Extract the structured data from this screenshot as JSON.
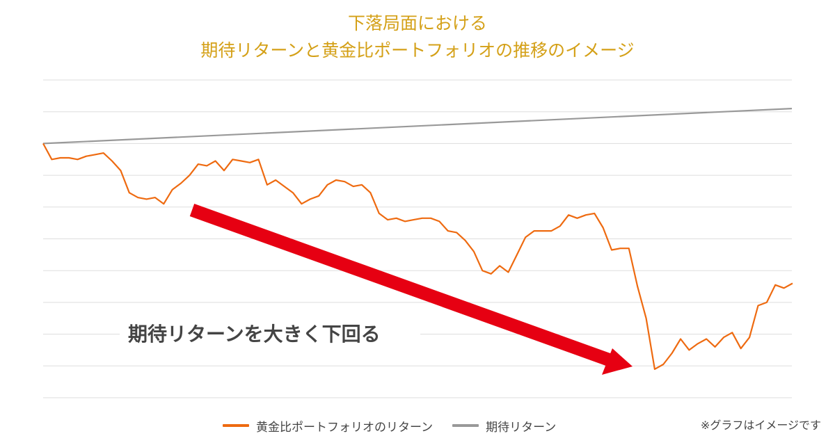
{
  "chart_data": {
    "type": "line",
    "title_lines": [
      "下落局面における",
      "期待リターンと黄金比ポートフォリオの推移のイメージ"
    ],
    "xlabel": "",
    "ylabel": "",
    "grid": true,
    "legend_position": "bottom",
    "annotation": "期待リターンを大きく下回る",
    "note": "※グラフはイメージです",
    "ylim": [
      -8,
      2
    ],
    "series": [
      {
        "name": "黄金比ポートフォリオのリターン",
        "color": "#ee6a10",
        "values": [
          0,
          -0.5,
          -0.45,
          -0.45,
          -0.5,
          -0.4,
          -0.35,
          -0.3,
          -0.55,
          -0.85,
          -1.55,
          -1.7,
          -1.75,
          -1.7,
          -1.9,
          -1.45,
          -1.25,
          -1.0,
          -0.65,
          -0.7,
          -0.55,
          -0.85,
          -0.5,
          -0.55,
          -0.6,
          -0.5,
          -1.3,
          -1.15,
          -1.35,
          -1.55,
          -1.9,
          -1.75,
          -1.65,
          -1.3,
          -1.15,
          -1.2,
          -1.35,
          -1.3,
          -1.55,
          -2.2,
          -2.4,
          -2.35,
          -2.45,
          -2.4,
          -2.35,
          -2.35,
          -2.45,
          -2.75,
          -2.8,
          -3.05,
          -3.4,
          -4.0,
          -4.1,
          -3.85,
          -4.05,
          -3.5,
          -2.95,
          -2.75,
          -2.75,
          -2.75,
          -2.6,
          -2.25,
          -2.35,
          -2.25,
          -2.2,
          -2.65,
          -3.35,
          -3.3,
          -3.3,
          -4.5,
          -5.5,
          -7.1,
          -6.95,
          -6.6,
          -6.15,
          -6.5,
          -6.3,
          -6.15,
          -6.4,
          -6.1,
          -5.95,
          -6.45,
          -6.1,
          -5.1,
          -5.0,
          -4.45,
          -4.55,
          -4.4
        ]
      },
      {
        "name": "期待リターン",
        "color": "#999999",
        "values": [
          0,
          1.1
        ]
      }
    ]
  }
}
